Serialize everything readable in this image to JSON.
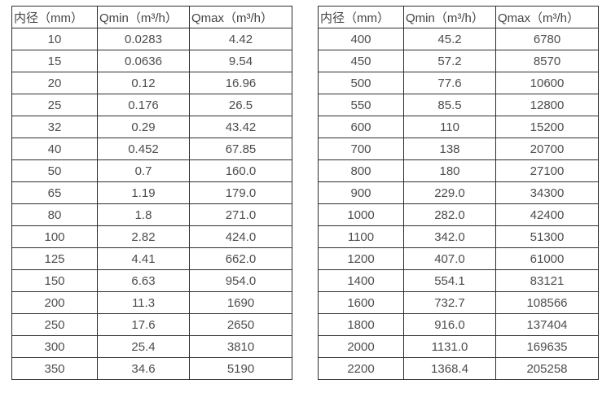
{
  "page": {
    "background": "#ffffff"
  },
  "colors": {
    "border": "#2f2f2f",
    "text": "#4d4d4d",
    "header_text": "#444444"
  },
  "cell_names": [
    "diameter-cell",
    "qmin-cell",
    "qmax-cell"
  ],
  "chart_data": [
    {
      "type": "table",
      "title": "",
      "columns": [
        "内径（mm）",
        "Qmin（m³/h）",
        "Qmax（m³/h）"
      ],
      "rows": [
        [
          "10",
          "0.0283",
          "4.42"
        ],
        [
          "15",
          "0.0636",
          "9.54"
        ],
        [
          "20",
          "0.12",
          "16.96"
        ],
        [
          "25",
          "0.176",
          "26.5"
        ],
        [
          "32",
          "0.29",
          "43.42"
        ],
        [
          "40",
          "0.452",
          "67.85"
        ],
        [
          "50",
          "0.7",
          "160.0"
        ],
        [
          "65",
          "1.19",
          "179.0"
        ],
        [
          "80",
          "1.8",
          "271.0"
        ],
        [
          "100",
          "2.82",
          "424.0"
        ],
        [
          "125",
          "4.41",
          "662.0"
        ],
        [
          "150",
          "6.63",
          "954.0"
        ],
        [
          "200",
          "11.3",
          "1690"
        ],
        [
          "250",
          "17.6",
          "2650"
        ],
        [
          "300",
          "25.4",
          "3810"
        ],
        [
          "350",
          "34.6",
          "5190"
        ]
      ]
    },
    {
      "type": "table",
      "title": "",
      "columns": [
        "内径（mm）",
        "Qmin（m³/h）",
        "Qmax（m³/h）"
      ],
      "rows": [
        [
          "400",
          "45.2",
          "6780"
        ],
        [
          "450",
          "57.2",
          "8570"
        ],
        [
          "500",
          "77.6",
          "10600"
        ],
        [
          "550",
          "85.5",
          "12800"
        ],
        [
          "600",
          "110",
          "15200"
        ],
        [
          "700",
          "138",
          "20700"
        ],
        [
          "800",
          "180",
          "27100"
        ],
        [
          "900",
          "229.0",
          "34300"
        ],
        [
          "1000",
          "282.0",
          "42400"
        ],
        [
          "1100",
          "342.0",
          "51300"
        ],
        [
          "1200",
          "407.0",
          "61000"
        ],
        [
          "1400",
          "554.1",
          "83121"
        ],
        [
          "1600",
          "732.7",
          "108566"
        ],
        [
          "1800",
          "916.0",
          "137404"
        ],
        [
          "2000",
          "1131.0",
          "169635"
        ],
        [
          "2200",
          "1368.4",
          "205258"
        ]
      ]
    }
  ]
}
